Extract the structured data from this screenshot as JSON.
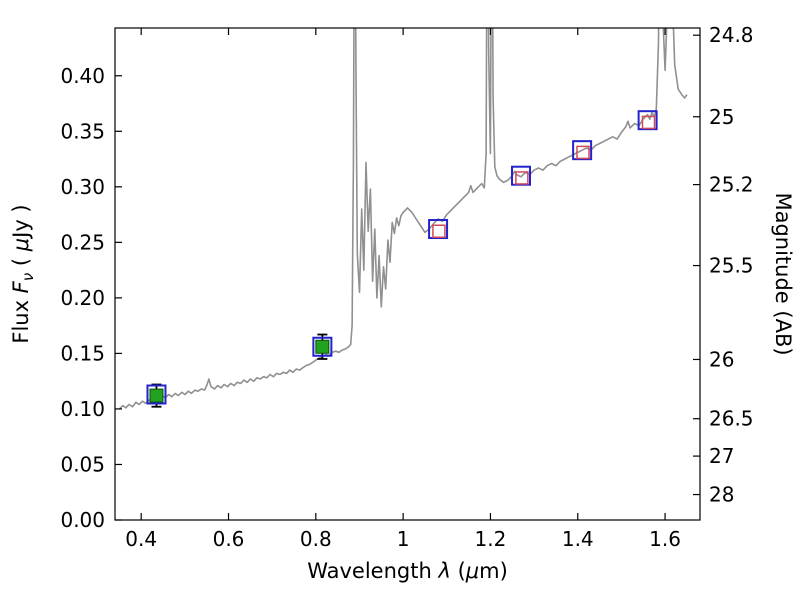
{
  "figure": {
    "background_color": "#ffffff",
    "axis_color": "#000000"
  },
  "chart_data": {
    "type": "line",
    "title": "",
    "description": "Galaxy spectral energy distribution: gray model spectrum with photometric data points",
    "xlabel": "Wavelength λ (μm)",
    "ylabel_left": "Flux Fν ( μJy )",
    "ylabel_right": "Magnitude (AB)",
    "xlabel_parts": [
      {
        "t": "Wavelength  ",
        "italic": false,
        "sub": false
      },
      {
        "t": "λ",
        "italic": true,
        "sub": false
      },
      {
        "t": " (",
        "italic": false,
        "sub": false
      },
      {
        "t": "μ",
        "italic": true,
        "sub": false
      },
      {
        "t": "m)",
        "italic": false,
        "sub": false
      }
    ],
    "ylabel_left_parts": [
      {
        "t": "Flux  ",
        "italic": false,
        "sub": false
      },
      {
        "t": "F",
        "italic": true,
        "sub": false
      },
      {
        "t": "ν",
        "italic": true,
        "sub": true
      },
      {
        "t": "  ( ",
        "italic": false,
        "sub": false
      },
      {
        "t": "μ",
        "italic": true,
        "sub": false
      },
      {
        "t": "Jy )",
        "italic": false,
        "sub": false
      }
    ],
    "xlim": [
      0.34,
      1.68
    ],
    "ylim": [
      0.0,
      0.443
    ],
    "grid": false,
    "legend": null,
    "x_ticks": {
      "values": [
        0.4,
        0.6,
        0.8,
        1.0,
        1.2,
        1.4,
        1.6
      ],
      "labels": [
        "0.4",
        "0.6",
        "0.8",
        "1",
        "1.2",
        "1.4",
        "1.6"
      ]
    },
    "y_ticks_left": {
      "values": [
        0.0,
        0.05,
        0.1,
        0.15,
        0.2,
        0.25,
        0.3,
        0.35,
        0.4
      ],
      "labels": [
        "0.00",
        "0.05",
        "0.10",
        "0.15",
        "0.20",
        "0.25",
        "0.30",
        "0.35",
        "0.40"
      ]
    },
    "y_ticks_right": {
      "ab_zeropoint_ujy": 23.9,
      "magnitudes": [
        24.8,
        25.0,
        25.2,
        25.5,
        26.0,
        26.5,
        27.0,
        28.0
      ],
      "labels": [
        "24.8",
        "25",
        "25.2",
        "25.5",
        "26",
        "26.5",
        "27",
        "28"
      ]
    },
    "spectrum": {
      "color": "#909090",
      "line_width": 1.6,
      "points": [
        [
          0.35,
          0.1
        ],
        [
          0.358,
          0.103
        ],
        [
          0.365,
          0.101
        ],
        [
          0.372,
          0.104
        ],
        [
          0.38,
          0.102
        ],
        [
          0.388,
          0.106
        ],
        [
          0.395,
          0.104
        ],
        [
          0.403,
          0.107
        ],
        [
          0.41,
          0.105
        ],
        [
          0.418,
          0.108
        ],
        [
          0.425,
          0.107
        ],
        [
          0.433,
          0.11
        ],
        [
          0.44,
          0.109
        ],
        [
          0.448,
          0.112
        ],
        [
          0.455,
          0.11
        ],
        [
          0.463,
          0.113
        ],
        [
          0.47,
          0.111
        ],
        [
          0.478,
          0.114
        ],
        [
          0.485,
          0.112
        ],
        [
          0.493,
          0.115
        ],
        [
          0.5,
          0.113
        ],
        [
          0.508,
          0.116
        ],
        [
          0.515,
          0.114
        ],
        [
          0.523,
          0.117
        ],
        [
          0.53,
          0.116
        ],
        [
          0.538,
          0.118
        ],
        [
          0.545,
          0.117
        ],
        [
          0.55,
          0.121
        ],
        [
          0.555,
          0.127
        ],
        [
          0.56,
          0.12
        ],
        [
          0.568,
          0.118
        ],
        [
          0.575,
          0.121
        ],
        [
          0.583,
          0.119
        ],
        [
          0.59,
          0.122
        ],
        [
          0.598,
          0.12
        ],
        [
          0.605,
          0.123
        ],
        [
          0.613,
          0.121
        ],
        [
          0.62,
          0.124
        ],
        [
          0.628,
          0.123
        ],
        [
          0.635,
          0.126
        ],
        [
          0.643,
          0.124
        ],
        [
          0.65,
          0.127
        ],
        [
          0.658,
          0.125
        ],
        [
          0.665,
          0.128
        ],
        [
          0.673,
          0.127
        ],
        [
          0.68,
          0.129
        ],
        [
          0.688,
          0.128
        ],
        [
          0.695,
          0.131
        ],
        [
          0.703,
          0.129
        ],
        [
          0.71,
          0.132
        ],
        [
          0.718,
          0.131
        ],
        [
          0.725,
          0.133
        ],
        [
          0.733,
          0.132
        ],
        [
          0.74,
          0.135
        ],
        [
          0.748,
          0.133
        ],
        [
          0.755,
          0.136
        ],
        [
          0.763,
          0.135
        ],
        [
          0.77,
          0.137
        ],
        [
          0.778,
          0.139
        ],
        [
          0.785,
          0.14
        ],
        [
          0.793,
          0.142
        ],
        [
          0.8,
          0.144
        ],
        [
          0.808,
          0.146
        ],
        [
          0.815,
          0.147
        ],
        [
          0.823,
          0.149
        ],
        [
          0.83,
          0.148
        ],
        [
          0.838,
          0.151
        ],
        [
          0.845,
          0.152
        ],
        [
          0.853,
          0.151
        ],
        [
          0.86,
          0.153
        ],
        [
          0.868,
          0.154
        ],
        [
          0.875,
          0.156
        ],
        [
          0.88,
          0.158
        ],
        [
          0.883,
          0.175
        ],
        [
          0.886,
          0.32
        ],
        [
          0.889,
          0.62
        ],
        [
          0.892,
          0.4
        ],
        [
          0.895,
          0.24
        ],
        [
          0.9,
          0.205
        ],
        [
          0.905,
          0.28
        ],
        [
          0.91,
          0.225
        ],
        [
          0.915,
          0.322
        ],
        [
          0.92,
          0.26
        ],
        [
          0.925,
          0.298
        ],
        [
          0.93,
          0.215
        ],
        [
          0.935,
          0.262
        ],
        [
          0.94,
          0.2
        ],
        [
          0.945,
          0.238
        ],
        [
          0.95,
          0.192
        ],
        [
          0.955,
          0.228
        ],
        [
          0.96,
          0.208
        ],
        [
          0.965,
          0.252
        ],
        [
          0.97,
          0.232
        ],
        [
          0.975,
          0.268
        ],
        [
          0.98,
          0.258
        ],
        [
          0.985,
          0.272
        ],
        [
          0.99,
          0.265
        ],
        [
          0.995,
          0.274
        ],
        [
          1.0,
          0.277
        ],
        [
          1.01,
          0.281
        ],
        [
          1.02,
          0.277
        ],
        [
          1.03,
          0.271
        ],
        [
          1.04,
          0.265
        ],
        [
          1.05,
          0.259
        ],
        [
          1.06,
          0.262
        ],
        [
          1.07,
          0.267
        ],
        [
          1.08,
          0.271
        ],
        [
          1.09,
          0.269
        ],
        [
          1.1,
          0.275
        ],
        [
          1.11,
          0.279
        ],
        [
          1.12,
          0.283
        ],
        [
          1.13,
          0.287
        ],
        [
          1.14,
          0.291
        ],
        [
          1.15,
          0.295
        ],
        [
          1.155,
          0.301
        ],
        [
          1.16,
          0.295
        ],
        [
          1.17,
          0.299
        ],
        [
          1.18,
          0.303
        ],
        [
          1.186,
          0.299
        ],
        [
          1.19,
          0.33
        ],
        [
          1.193,
          0.62
        ],
        [
          1.196,
          0.42
        ],
        [
          1.2,
          0.33
        ],
        [
          1.203,
          0.62
        ],
        [
          1.206,
          0.38
        ],
        [
          1.21,
          0.318
        ],
        [
          1.215,
          0.31
        ],
        [
          1.22,
          0.307
        ],
        [
          1.23,
          0.304
        ],
        [
          1.24,
          0.306
        ],
        [
          1.25,
          0.31
        ],
        [
          1.255,
          0.314
        ],
        [
          1.26,
          0.311
        ],
        [
          1.27,
          0.309
        ],
        [
          1.28,
          0.313
        ],
        [
          1.29,
          0.311
        ],
        [
          1.3,
          0.315
        ],
        [
          1.31,
          0.317
        ],
        [
          1.32,
          0.315
        ],
        [
          1.33,
          0.319
        ],
        [
          1.34,
          0.321
        ],
        [
          1.35,
          0.319
        ],
        [
          1.36,
          0.323
        ],
        [
          1.37,
          0.325
        ],
        [
          1.38,
          0.327
        ],
        [
          1.39,
          0.329
        ],
        [
          1.4,
          0.331
        ],
        [
          1.41,
          0.333
        ],
        [
          1.42,
          0.335
        ],
        [
          1.43,
          0.333
        ],
        [
          1.44,
          0.337
        ],
        [
          1.45,
          0.339
        ],
        [
          1.46,
          0.341
        ],
        [
          1.47,
          0.343
        ],
        [
          1.48,
          0.345
        ],
        [
          1.49,
          0.343
        ],
        [
          1.5,
          0.349
        ],
        [
          1.51,
          0.354
        ],
        [
          1.515,
          0.359
        ],
        [
          1.52,
          0.353
        ],
        [
          1.53,
          0.357
        ],
        [
          1.54,
          0.355
        ],
        [
          1.55,
          0.361
        ],
        [
          1.56,
          0.365
        ],
        [
          1.565,
          0.361
        ],
        [
          1.57,
          0.367
        ],
        [
          1.575,
          0.363
        ],
        [
          1.58,
          0.37
        ],
        [
          1.585,
          0.43
        ],
        [
          1.589,
          0.62
        ],
        [
          1.594,
          0.46
        ],
        [
          1.6,
          0.405
        ],
        [
          1.606,
          0.47
        ],
        [
          1.611,
          0.62
        ],
        [
          1.616,
          0.48
        ],
        [
          1.622,
          0.41
        ],
        [
          1.63,
          0.388
        ],
        [
          1.638,
          0.383
        ],
        [
          1.645,
          0.38
        ],
        [
          1.65,
          0.383
        ]
      ]
    },
    "photometry": {
      "observed": {
        "marker": "filled-square",
        "fill": "#21a321",
        "edge": "#084d08",
        "errorbar_color": "#000000",
        "size": 13,
        "points": [
          {
            "x": 0.435,
            "y": 0.112,
            "yerr": 0.01
          },
          {
            "x": 0.815,
            "y": 0.156,
            "yerr": 0.011
          }
        ]
      },
      "model_blue": {
        "marker": "open-square",
        "color": "#2323cc",
        "size": 18,
        "line_width": 2,
        "points": [
          {
            "x": 0.435,
            "y": 0.113
          },
          {
            "x": 0.815,
            "y": 0.156
          },
          {
            "x": 1.08,
            "y": 0.262
          },
          {
            "x": 1.27,
            "y": 0.31
          },
          {
            "x": 1.41,
            "y": 0.333
          },
          {
            "x": 1.56,
            "y": 0.36
          }
        ]
      },
      "model_red": {
        "marker": "open-square",
        "color": "#d14a5a",
        "size": 12,
        "line_width": 1.5,
        "points": [
          {
            "x": 1.082,
            "y": 0.26
          },
          {
            "x": 1.272,
            "y": 0.308
          },
          {
            "x": 1.412,
            "y": 0.331
          },
          {
            "x": 1.562,
            "y": 0.358
          }
        ]
      }
    }
  }
}
